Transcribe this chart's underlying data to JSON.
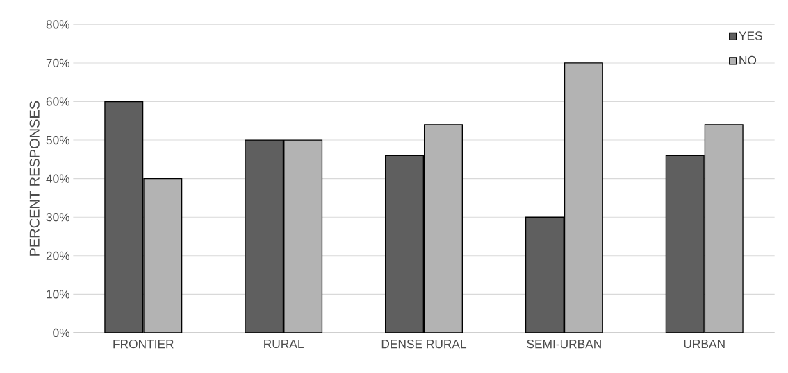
{
  "chart_data": {
    "type": "bar",
    "ylabel": "PERCENT RESPONSES",
    "categories": [
      "FRONTIER",
      "RURAL",
      "DENSE RURAL",
      "SEMI-URBAN",
      "URBAN"
    ],
    "series": [
      {
        "name": "YES",
        "color": "#5f5f5f",
        "values": [
          60,
          50,
          46,
          30,
          46
        ]
      },
      {
        "name": "NO",
        "color": "#b3b3b3",
        "values": [
          40,
          50,
          54,
          70,
          54
        ]
      }
    ],
    "ylim": [
      0,
      80
    ],
    "yticks": [
      {
        "value": 0,
        "label": "0%"
      },
      {
        "value": 10,
        "label": "10%"
      },
      {
        "value": 20,
        "label": "20%"
      },
      {
        "value": 30,
        "label": "30%"
      },
      {
        "value": 40,
        "label": "40%"
      },
      {
        "value": 50,
        "label": "50%"
      },
      {
        "value": 60,
        "label": "60%"
      },
      {
        "value": 70,
        "label": "70%"
      },
      {
        "value": 80,
        "label": "80%"
      }
    ],
    "grid": "y",
    "legend": "top right"
  }
}
